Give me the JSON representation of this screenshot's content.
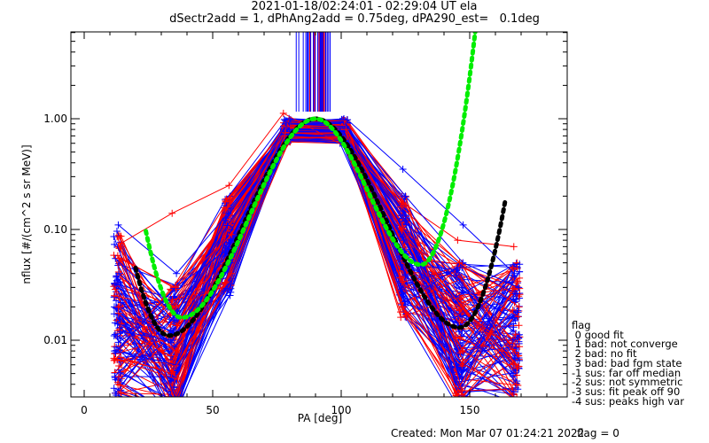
{
  "title_line1": "2021-01-18/02:24:01 - 02:29:04 UT ela",
  "title_line2": "dSectr2add = 1, dPhAng2add = 0.75deg, dPA290_est=   0.1deg",
  "footer": {
    "created": "Created: Mon Mar 07 01:24:21 2022",
    "flag": "flag = 0"
  },
  "legend": {
    "title": "flag",
    "entries": [
      " 0 good fit",
      " 1 bad: not converge",
      " 2 bad: no fit",
      " 3 bad: bad fgm state",
      "-1 sus: far off median",
      "-2 sus: not symmetric",
      "-3 sus: fit peak off 90",
      "-4 sus: peaks high var"
    ]
  },
  "chart_data": {
    "type": "line",
    "title": "2021-01-18/02:24:01 - 02:29:04 UT ela",
    "subtitle": "dSectr2add = 1, dPhAng2add = 0.75deg, dPA290_est=   0.1deg",
    "xlabel": "PA [deg]",
    "ylabel": "nflux [#/(cm^2 s sr MeV)]",
    "xlim": [
      -5,
      188
    ],
    "ylim": [
      0.0031,
      6.1
    ],
    "yscale": "log",
    "xticks": [
      0,
      50,
      100,
      150
    ],
    "xtick_labels": [
      "0",
      "50",
      "100",
      "150"
    ],
    "yticks": [
      0.01,
      0.1,
      1.0
    ],
    "ytick_labels": [
      "0.01",
      "0.10",
      "1.00"
    ],
    "grid": false,
    "colors": {
      "series_a": "#0000ff",
      "series_b": "#ff0000",
      "fit_narrow": "#00ee00",
      "fit_wide": "#000000"
    },
    "pa_bins": [
      13,
      35,
      56,
      79,
      101,
      124,
      146,
      168
    ],
    "spectra_sample": [
      {
        "color": "blue",
        "values": [
          0.11,
          0.04,
          0.14,
          0.98,
          0.98,
          0.35,
          0.11,
          0.04
        ]
      },
      {
        "color": "red",
        "values": [
          0.075,
          0.14,
          0.25,
          1.12,
          0.55,
          0.18,
          0.08,
          0.07
        ]
      },
      {
        "color": "blue",
        "values": [
          0.04,
          0.015,
          0.1,
          0.9,
          0.85,
          0.2,
          0.05,
          0.03
        ]
      },
      {
        "color": "red",
        "values": [
          0.055,
          0.03,
          0.09,
          0.85,
          0.8,
          0.16,
          0.05,
          0.02
        ]
      },
      {
        "color": "blue",
        "values": [
          0.012,
          0.01,
          0.07,
          0.8,
          0.78,
          0.12,
          0.03,
          0.015
        ]
      },
      {
        "color": "red",
        "values": [
          0.02,
          0.008,
          0.06,
          0.75,
          0.7,
          0.1,
          0.02,
          0.006
        ]
      },
      {
        "color": "blue",
        "values": [
          0.008,
          0.006,
          0.05,
          0.72,
          0.7,
          0.08,
          0.012,
          0.005
        ]
      },
      {
        "color": "red",
        "values": [
          0.007,
          0.005,
          0.04,
          0.7,
          0.65,
          0.06,
          0.008,
          0.004
        ]
      }
    ],
    "fits": [
      {
        "name": "fit_narrow",
        "peak_pa": 90,
        "peak": 1.0,
        "min_left": {
          "pa": 38,
          "value": 0.016
        },
        "min_right": {
          "pa": 131,
          "value": 0.048
        }
      },
      {
        "name": "fit_wide",
        "peak_pa": 90,
        "peak": 1.0,
        "min_left": {
          "pa": 33,
          "value": 0.011
        },
        "min_right": {
          "pa": 146,
          "value": 0.013
        }
      }
    ]
  }
}
